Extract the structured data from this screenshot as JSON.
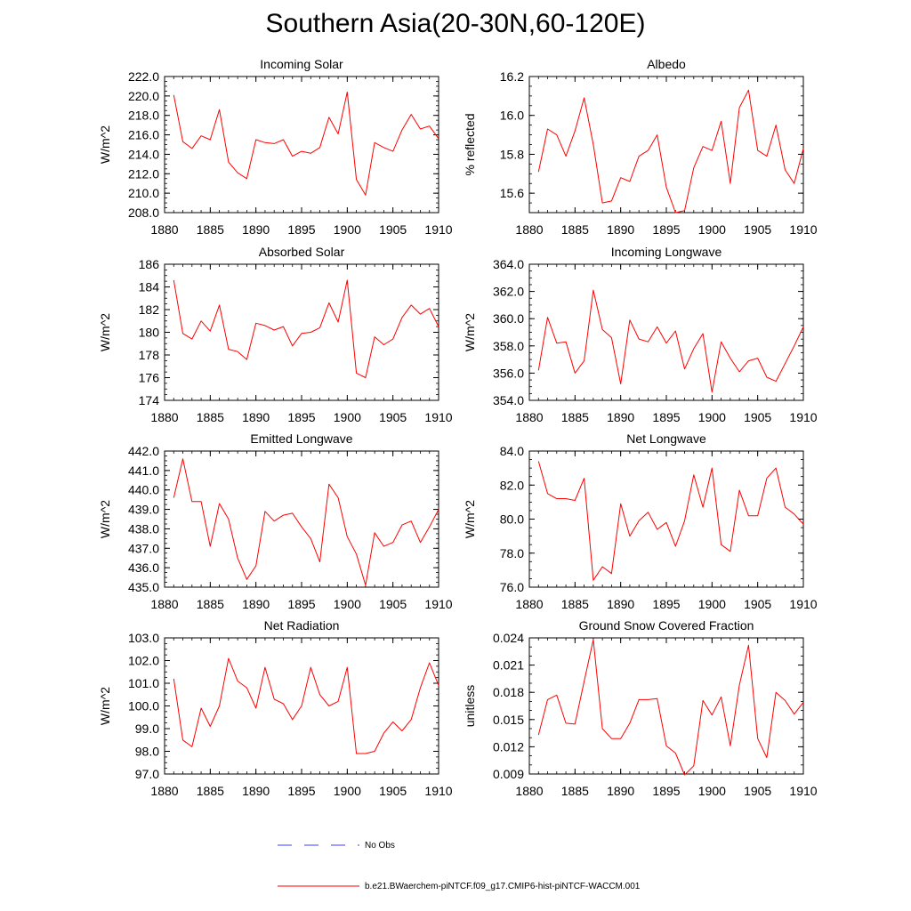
{
  "title": "Southern Asia(20-30N,60-120E)",
  "colors": {
    "model": "#ff0000",
    "obs": "#0000ff",
    "frame": "#000000"
  },
  "legend": [
    {
      "label": "No Obs",
      "style": "dashed",
      "color": "#0000ff"
    },
    {
      "label": "b.e21.BWaerchem-piNTCF.f09_g17.CMIP6-hist-piNTCF-WACCM.001",
      "style": "solid",
      "color": "#ff0000"
    }
  ],
  "chart_data": [
    {
      "type": "line",
      "title": "Incoming Solar",
      "ylabel": "W/m^2",
      "xlim": [
        1880,
        1910
      ],
      "ylim": [
        208,
        222
      ],
      "xticks": [
        1880,
        1885,
        1890,
        1895,
        1900,
        1905,
        1910
      ],
      "yticks": [
        208,
        210,
        212,
        214,
        216,
        218,
        220,
        222
      ],
      "ydec": 1,
      "yminor": 0.5,
      "x": [
        1881,
        1882,
        1883,
        1884,
        1885,
        1886,
        1887,
        1888,
        1889,
        1890,
        1891,
        1892,
        1893,
        1894,
        1895,
        1896,
        1897,
        1898,
        1899,
        1900,
        1901,
        1902,
        1903,
        1904,
        1905,
        1906,
        1907,
        1908,
        1909,
        1910
      ],
      "series": [
        {
          "values": [
            220.1,
            215.3,
            214.6,
            215.9,
            215.5,
            218.6,
            213.2,
            212.1,
            211.5,
            215.5,
            215.2,
            215.1,
            215.5,
            213.8,
            214.3,
            214.1,
            214.7,
            217.8,
            216.1,
            220.4,
            211.4,
            209.8,
            215.2,
            214.7,
            214.3,
            216.5,
            218.1,
            216.6,
            216.9,
            215.6
          ]
        }
      ]
    },
    {
      "type": "line",
      "title": "Albedo",
      "ylabel": "% reflected",
      "xlim": [
        1880,
        1910
      ],
      "ylim": [
        15.5,
        16.2
      ],
      "xticks": [
        1880,
        1885,
        1890,
        1895,
        1900,
        1905,
        1910
      ],
      "yticks": [
        15.6,
        15.8,
        16.0,
        16.2
      ],
      "ydec": 1,
      "yminor": 0.05,
      "x": [
        1881,
        1882,
        1883,
        1884,
        1885,
        1886,
        1887,
        1888,
        1889,
        1890,
        1891,
        1892,
        1893,
        1894,
        1895,
        1896,
        1897,
        1898,
        1899,
        1900,
        1901,
        1902,
        1903,
        1904,
        1905,
        1906,
        1907,
        1908,
        1909,
        1910
      ],
      "series": [
        {
          "values": [
            15.71,
            15.93,
            15.9,
            15.79,
            15.92,
            16.09,
            15.85,
            15.55,
            15.56,
            15.68,
            15.66,
            15.79,
            15.82,
            15.9,
            15.63,
            15.5,
            15.51,
            15.73,
            15.84,
            15.82,
            15.97,
            15.65,
            16.04,
            16.13,
            15.82,
            15.79,
            15.95,
            15.72,
            15.65,
            15.83
          ]
        }
      ]
    },
    {
      "type": "line",
      "title": "Absorbed Solar",
      "ylabel": "W/m^2",
      "xlim": [
        1880,
        1910
      ],
      "ylim": [
        174,
        186
      ],
      "xticks": [
        1880,
        1885,
        1890,
        1895,
        1900,
        1905,
        1910
      ],
      "yticks": [
        174,
        176,
        178,
        180,
        182,
        184,
        186
      ],
      "ydec": 0,
      "yminor": 0.5,
      "x": [
        1881,
        1882,
        1883,
        1884,
        1885,
        1886,
        1887,
        1888,
        1889,
        1890,
        1891,
        1892,
        1893,
        1894,
        1895,
        1896,
        1897,
        1898,
        1899,
        1900,
        1901,
        1902,
        1903,
        1904,
        1905,
        1906,
        1907,
        1908,
        1909,
        1910
      ],
      "series": [
        {
          "values": [
            184.6,
            179.9,
            179.4,
            181.0,
            180.1,
            182.4,
            178.5,
            178.3,
            177.6,
            180.8,
            180.6,
            180.2,
            180.5,
            178.8,
            179.9,
            180.0,
            180.4,
            182.6,
            180.9,
            184.6,
            176.4,
            176.0,
            179.6,
            178.9,
            179.4,
            181.3,
            182.4,
            181.6,
            182.1,
            180.5
          ]
        }
      ]
    },
    {
      "type": "line",
      "title": "Incoming Longwave",
      "ylabel": "W/m^2",
      "xlim": [
        1880,
        1910
      ],
      "ylim": [
        354,
        364
      ],
      "xticks": [
        1880,
        1885,
        1890,
        1895,
        1900,
        1905,
        1910
      ],
      "yticks": [
        354,
        356,
        358,
        360,
        362,
        364
      ],
      "ydec": 1,
      "yminor": 0.5,
      "x": [
        1881,
        1882,
        1883,
        1884,
        1885,
        1886,
        1887,
        1888,
        1889,
        1890,
        1891,
        1892,
        1893,
        1894,
        1895,
        1896,
        1897,
        1898,
        1899,
        1900,
        1901,
        1902,
        1903,
        1904,
        1905,
        1906,
        1907,
        1908,
        1909,
        1910
      ],
      "series": [
        {
          "values": [
            356.2,
            360.1,
            358.2,
            358.3,
            356.0,
            356.9,
            362.1,
            359.2,
            358.6,
            355.2,
            359.9,
            358.5,
            358.3,
            359.4,
            358.2,
            359.1,
            356.3,
            357.8,
            358.9,
            354.6,
            358.3,
            357.1,
            356.1,
            356.9,
            357.1,
            355.7,
            355.4,
            356.7,
            358.0,
            359.4
          ]
        }
      ]
    },
    {
      "type": "line",
      "title": "Emitted Longwave",
      "ylabel": "W/m^2",
      "xlim": [
        1880,
        1910
      ],
      "ylim": [
        435,
        442
      ],
      "xticks": [
        1880,
        1885,
        1890,
        1895,
        1900,
        1905,
        1910
      ],
      "yticks": [
        435,
        436,
        437,
        438,
        439,
        440,
        441,
        442
      ],
      "ydec": 1,
      "yminor": 0.25,
      "x": [
        1881,
        1882,
        1883,
        1884,
        1885,
        1886,
        1887,
        1888,
        1889,
        1890,
        1891,
        1892,
        1893,
        1894,
        1895,
        1896,
        1897,
        1898,
        1899,
        1900,
        1901,
        1902,
        1903,
        1904,
        1905,
        1906,
        1907,
        1908,
        1909,
        1910
      ],
      "series": [
        {
          "values": [
            439.6,
            441.6,
            439.4,
            439.4,
            437.1,
            439.3,
            438.5,
            436.5,
            435.4,
            436.1,
            438.9,
            438.4,
            438.7,
            438.8,
            438.1,
            437.5,
            436.3,
            440.3,
            439.6,
            437.6,
            436.7,
            435.1,
            437.8,
            437.1,
            437.3,
            438.2,
            438.4,
            437.3,
            438.1,
            439.0
          ]
        }
      ]
    },
    {
      "type": "line",
      "title": "Net Longwave",
      "ylabel": "W/m^2",
      "xlim": [
        1880,
        1910
      ],
      "ylim": [
        76,
        84
      ],
      "xticks": [
        1880,
        1885,
        1890,
        1895,
        1900,
        1905,
        1910
      ],
      "yticks": [
        76,
        78,
        80,
        82,
        84
      ],
      "ydec": 1,
      "yminor": 0.5,
      "x": [
        1881,
        1882,
        1883,
        1884,
        1885,
        1886,
        1887,
        1888,
        1889,
        1890,
        1891,
        1892,
        1893,
        1894,
        1895,
        1896,
        1897,
        1898,
        1899,
        1900,
        1901,
        1902,
        1903,
        1904,
        1905,
        1906,
        1907,
        1908,
        1909,
        1910
      ],
      "series": [
        {
          "values": [
            83.4,
            81.5,
            81.2,
            81.2,
            81.1,
            82.4,
            76.4,
            77.2,
            76.8,
            80.9,
            79.0,
            79.9,
            80.4,
            79.4,
            79.8,
            78.4,
            79.9,
            82.6,
            80.7,
            83.0,
            78.5,
            78.1,
            81.7,
            80.2,
            80.2,
            82.4,
            83.0,
            80.7,
            80.3,
            79.7
          ]
        }
      ]
    },
    {
      "type": "line",
      "title": "Net Radiation",
      "ylabel": "W/m^2",
      "xlim": [
        1880,
        1910
      ],
      "ylim": [
        97,
        103
      ],
      "xticks": [
        1880,
        1885,
        1890,
        1895,
        1900,
        1905,
        1910
      ],
      "yticks": [
        97,
        98,
        99,
        100,
        101,
        102,
        103
      ],
      "ydec": 1,
      "yminor": 0.25,
      "x": [
        1881,
        1882,
        1883,
        1884,
        1885,
        1886,
        1887,
        1888,
        1889,
        1890,
        1891,
        1892,
        1893,
        1894,
        1895,
        1896,
        1897,
        1898,
        1899,
        1900,
        1901,
        1902,
        1903,
        1904,
        1905,
        1906,
        1907,
        1908,
        1909,
        1910
      ],
      "series": [
        {
          "values": [
            101.2,
            98.5,
            98.2,
            99.9,
            99.1,
            100.0,
            102.1,
            101.1,
            100.8,
            99.9,
            101.7,
            100.3,
            100.1,
            99.4,
            100.0,
            101.7,
            100.5,
            100.0,
            100.2,
            101.7,
            97.9,
            97.9,
            98.0,
            98.8,
            99.3,
            98.9,
            99.4,
            100.8,
            101.9,
            100.9
          ]
        }
      ]
    },
    {
      "type": "line",
      "title": "Ground Snow Covered Fraction",
      "ylabel": "unitless",
      "xlim": [
        1880,
        1910
      ],
      "ylim": [
        0.009,
        0.024
      ],
      "xticks": [
        1880,
        1885,
        1890,
        1895,
        1900,
        1905,
        1910
      ],
      "yticks": [
        0.009,
        0.012,
        0.015,
        0.018,
        0.021,
        0.024
      ],
      "ydec": 3,
      "yminor": 0.001,
      "x": [
        1881,
        1882,
        1883,
        1884,
        1885,
        1886,
        1887,
        1888,
        1889,
        1890,
        1891,
        1892,
        1893,
        1894,
        1895,
        1896,
        1897,
        1898,
        1899,
        1900,
        1901,
        1902,
        1903,
        1904,
        1905,
        1906,
        1907,
        1908,
        1909,
        1910
      ],
      "series": [
        {
          "values": [
            0.0133,
            0.0172,
            0.0177,
            0.0146,
            0.0145,
            0.0192,
            0.0238,
            0.014,
            0.0129,
            0.0129,
            0.0146,
            0.0172,
            0.0172,
            0.0173,
            0.0121,
            0.0113,
            0.0089,
            0.0099,
            0.0171,
            0.0155,
            0.0175,
            0.0121,
            0.0188,
            0.0232,
            0.0129,
            0.0108,
            0.018,
            0.0171,
            0.0156,
            0.0169
          ]
        }
      ]
    }
  ]
}
